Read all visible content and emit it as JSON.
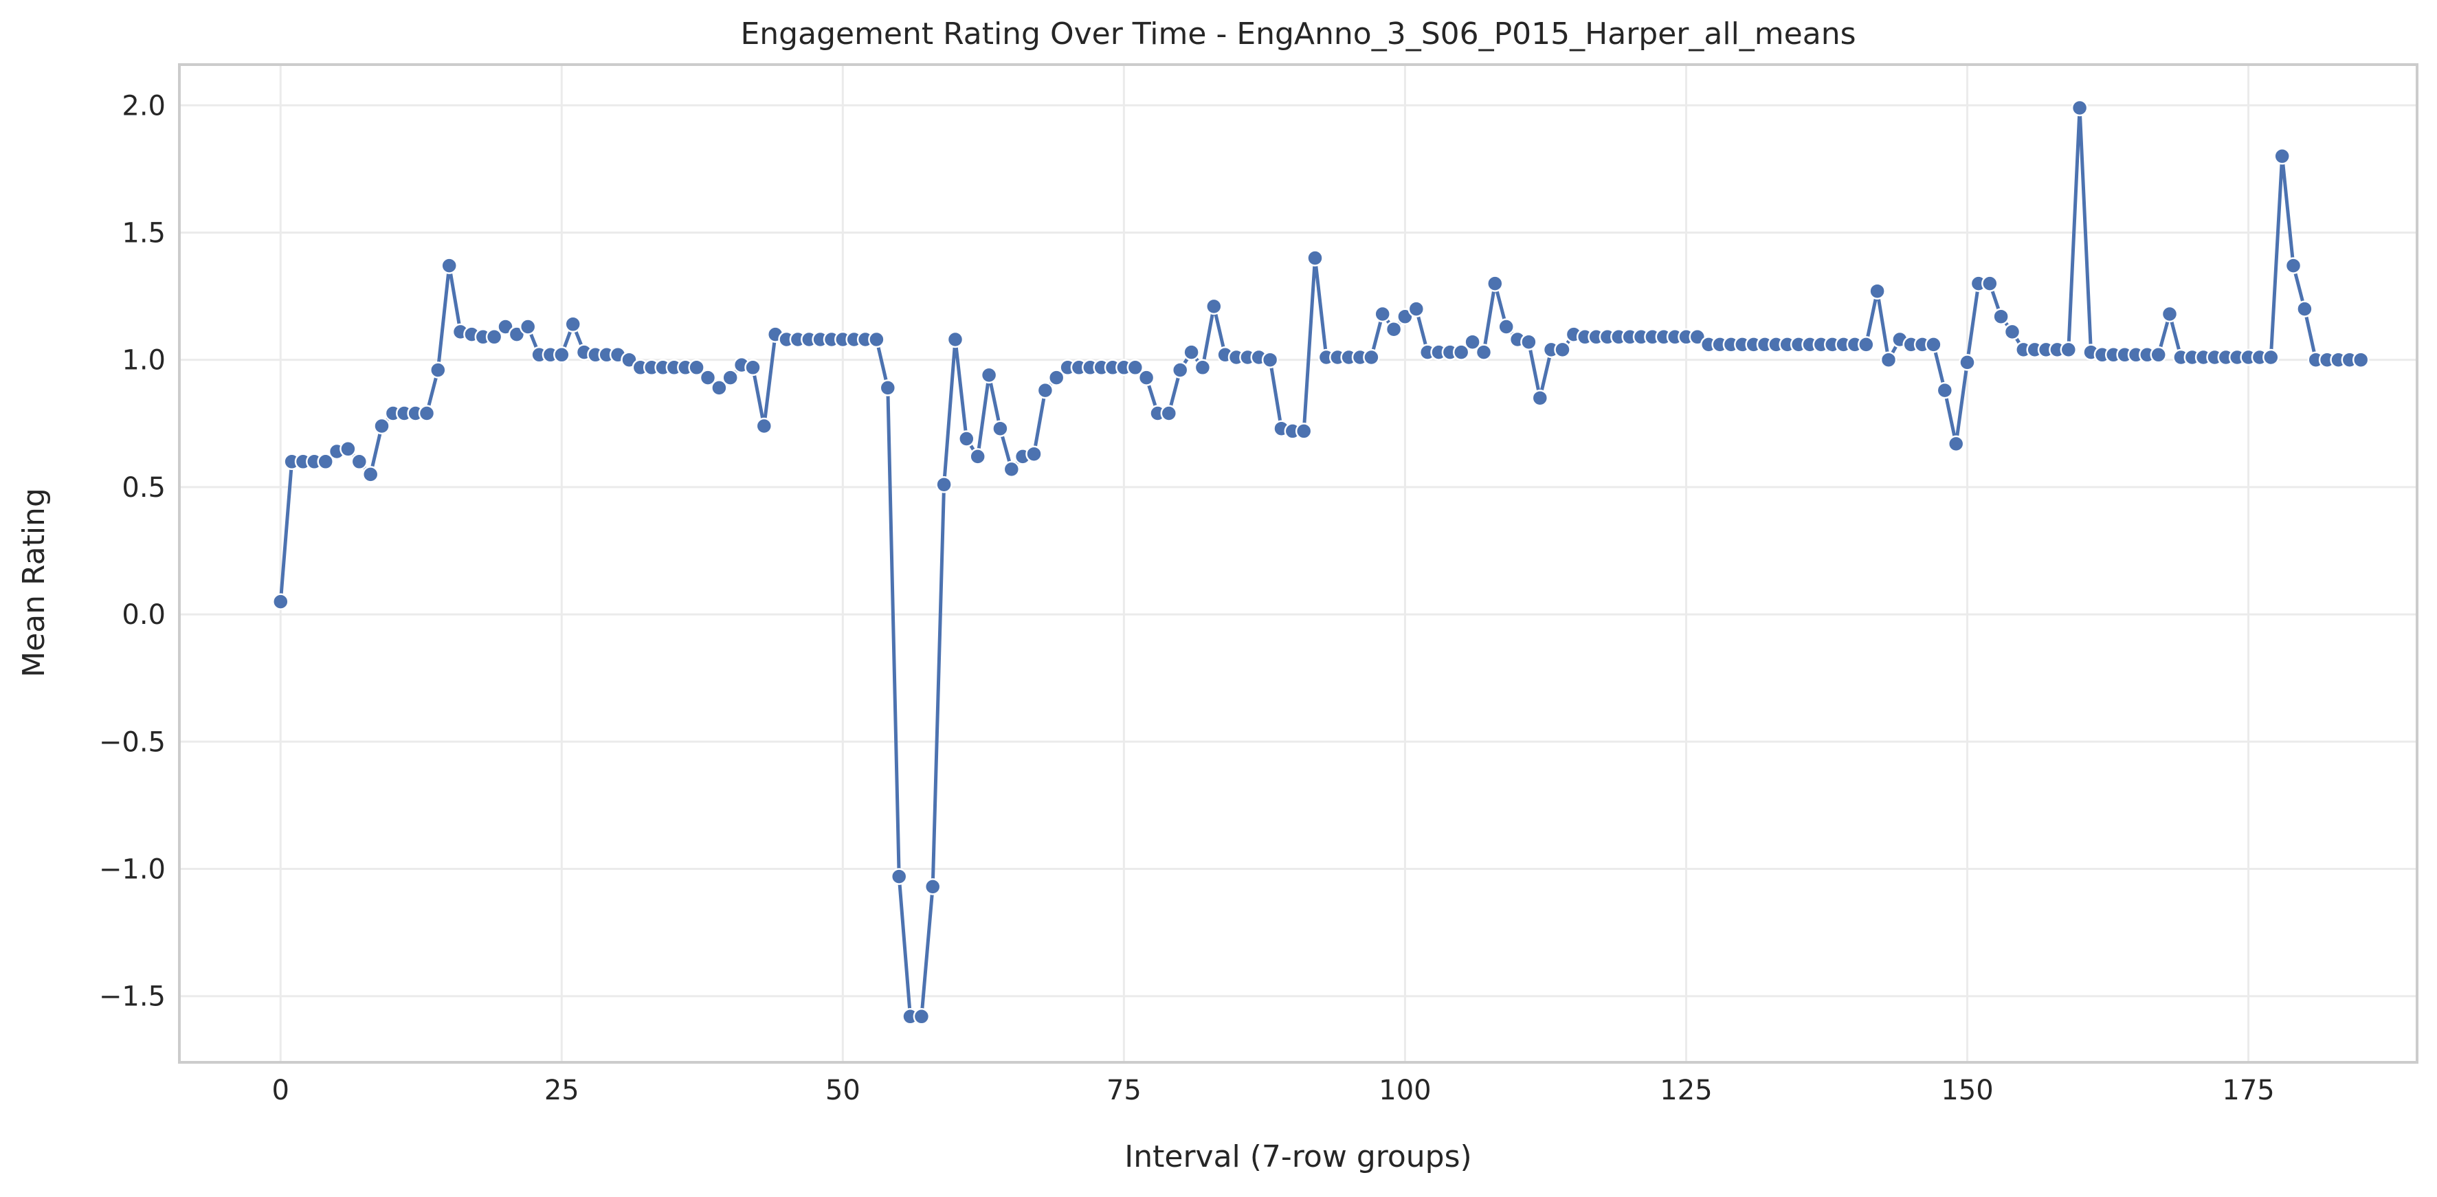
{
  "chart_data": {
    "type": "line",
    "title": "Engagement Rating Over Time -  EngAnno_3_S06_P015_Harper_all_means",
    "xlabel": "Interval (7-row groups)",
    "ylabel": "Mean Rating",
    "xlim": [
      -9,
      190
    ],
    "ylim": [
      -1.76,
      2.16
    ],
    "xticks": [
      0,
      25,
      50,
      75,
      100,
      125,
      150,
      175
    ],
    "xtick_labels": [
      "0",
      "25",
      "50",
      "75",
      "100",
      "125",
      "150",
      "175"
    ],
    "yticks": [
      2.0,
      1.5,
      1.0,
      0.5,
      0.0,
      -0.5,
      -1.0,
      -1.5
    ],
    "ytick_labels": [
      "2.0",
      "1.5",
      "1.0",
      "0.5",
      "0.0",
      "−0.5",
      "−1.0",
      "−1.5"
    ],
    "grid": true,
    "colors": {
      "series": "#4c72b0"
    },
    "series": [
      {
        "values": [
          0.05,
          0.6,
          0.6,
          0.6,
          0.6,
          0.64,
          0.65,
          0.6,
          0.55,
          0.74,
          0.79,
          0.79,
          0.79,
          0.79,
          0.96,
          1.37,
          1.11,
          1.1,
          1.09,
          1.09,
          1.13,
          1.1,
          1.13,
          1.02,
          1.02,
          1.02,
          1.14,
          1.03,
          1.02,
          1.02,
          1.02,
          1.0,
          0.97,
          0.97,
          0.97,
          0.97,
          0.97,
          0.97,
          0.93,
          0.89,
          0.93,
          0.98,
          0.97,
          0.74,
          1.1,
          1.08,
          1.08,
          1.08,
          1.08,
          1.08,
          1.08,
          1.08,
          1.08,
          1.08,
          0.89,
          -1.03,
          -1.58,
          -1.58,
          -1.07,
          0.51,
          1.08,
          0.69,
          0.62,
          0.94,
          0.73,
          0.57,
          0.62,
          0.63,
          0.88,
          0.93,
          0.97,
          0.97,
          0.97,
          0.97,
          0.97,
          0.97,
          0.97,
          0.93,
          0.79,
          0.79,
          0.96,
          1.03,
          0.97,
          1.21,
          1.02,
          1.01,
          1.01,
          1.01,
          1.0,
          0.73,
          0.72,
          0.72,
          1.4,
          1.01,
          1.01,
          1.01,
          1.01,
          1.01,
          1.18,
          1.12,
          1.17,
          1.2,
          1.03,
          1.03,
          1.03,
          1.03,
          1.07,
          1.03,
          1.3,
          1.13,
          1.08,
          1.07,
          0.85,
          1.04,
          1.04,
          1.1,
          1.09,
          1.09,
          1.09,
          1.09,
          1.09,
          1.09,
          1.09,
          1.09,
          1.09,
          1.09,
          1.09,
          1.06,
          1.06,
          1.06,
          1.06,
          1.06,
          1.06,
          1.06,
          1.06,
          1.06,
          1.06,
          1.06,
          1.06,
          1.06,
          1.06,
          1.06,
          1.27,
          1.0,
          1.08,
          1.06,
          1.06,
          1.06,
          0.88,
          0.67,
          0.99,
          1.3,
          1.3,
          1.17,
          1.11,
          1.04,
          1.04,
          1.04,
          1.04,
          1.04,
          1.99,
          1.03,
          1.02,
          1.02,
          1.02,
          1.02,
          1.02,
          1.02,
          1.18,
          1.01,
          1.01,
          1.01,
          1.01,
          1.01,
          1.01,
          1.01,
          1.01,
          1.01,
          1.8,
          1.37,
          1.2,
          1.0,
          1.0,
          1.0,
          1.0,
          1.0
        ]
      }
    ]
  }
}
